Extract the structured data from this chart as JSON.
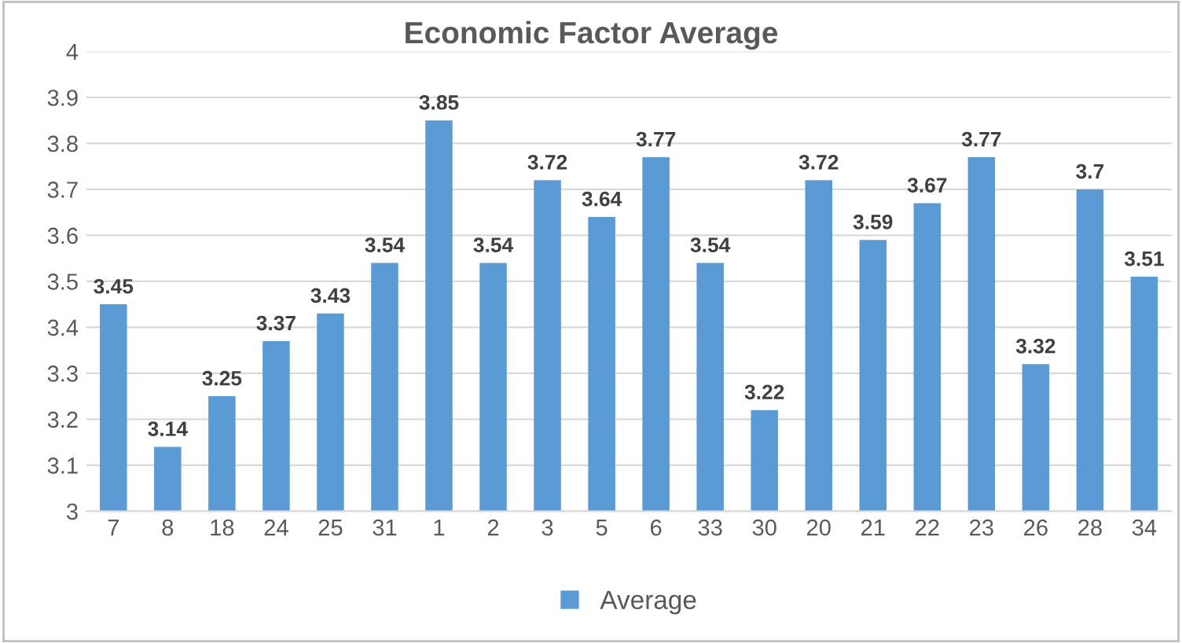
{
  "chart_data": {
    "type": "bar",
    "title": "Economic Factor Average",
    "categories": [
      "7",
      "8",
      "18",
      "24",
      "25",
      "31",
      "1",
      "2",
      "3",
      "5",
      "6",
      "33",
      "30",
      "20",
      "21",
      "22",
      "23",
      "26",
      "28",
      "34"
    ],
    "series": [
      {
        "name": "Average",
        "color": "#5b9bd5",
        "values": [
          3.45,
          3.14,
          3.25,
          3.37,
          3.43,
          3.54,
          3.85,
          3.54,
          3.72,
          3.64,
          3.77,
          3.54,
          3.22,
          3.72,
          3.59,
          3.67,
          3.77,
          3.32,
          3.7,
          3.51
        ]
      }
    ],
    "ylim": [
      3,
      4
    ],
    "yticks": [
      3,
      3.1,
      3.2,
      3.3,
      3.4,
      3.5,
      3.6,
      3.7,
      3.8,
      3.9,
      4
    ],
    "grid": "y",
    "legend": "bottom",
    "data_labels": true
  }
}
